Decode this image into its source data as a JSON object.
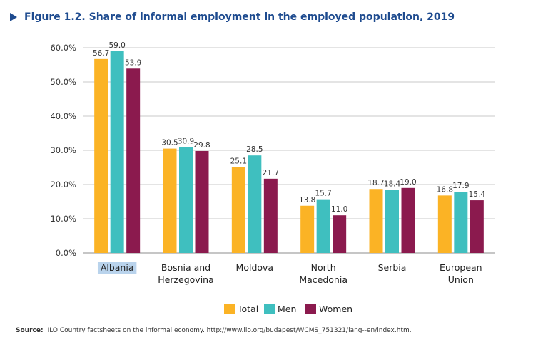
{
  "figure": {
    "title": "Figure 1.2. Share of informal employment in the employed population, 2019"
  },
  "source": {
    "label": "Source:",
    "text": "ILO Country factsheets on the informal economy. http://www.ilo.org/budapest/WCMS_751321/lang--en/index.htm."
  },
  "colors": {
    "title": "#1e4b8f",
    "total": "#fbb325",
    "men": "#3fbfbf",
    "women": "#8b1a4e",
    "highlight": "#b9d3ec",
    "grid": "#c9c9c9"
  },
  "chart_data": {
    "type": "bar",
    "title": "Figure 1.2. Share of informal employment in the employed population, 2019",
    "xlabel": "",
    "ylabel": "",
    "ylim": [
      0,
      60
    ],
    "yticks": [
      "0.0%",
      "10.0%",
      "20.0%",
      "30.0%",
      "40.0%",
      "50.0%",
      "60.0%"
    ],
    "grid": true,
    "legend": "bottom",
    "categories": [
      [
        "Albania"
      ],
      [
        "Bosnia and",
        "Herzegovina"
      ],
      [
        "Moldova"
      ],
      [
        "North",
        "Macedonia"
      ],
      [
        "Serbia"
      ],
      [
        "European",
        "Union"
      ]
    ],
    "highlighted_category": "Albania",
    "series": [
      {
        "name": "Total",
        "color": "#fbb325",
        "values": [
          56.7,
          30.5,
          25.1,
          13.8,
          18.7,
          16.8
        ],
        "labels": [
          "56.7",
          "30.5",
          "25.1",
          "13.8",
          "18.7",
          "16.8"
        ]
      },
      {
        "name": "Men",
        "color": "#3fbfbf",
        "values": [
          59.0,
          30.9,
          28.5,
          15.7,
          18.4,
          17.9
        ],
        "labels": [
          "59.0",
          "30.9",
          "28.5",
          "15.7",
          "18.4",
          "17.9"
        ]
      },
      {
        "name": "Women",
        "color": "#8b1a4e",
        "values": [
          53.9,
          29.8,
          21.7,
          11.0,
          19.0,
          15.4
        ],
        "labels": [
          "53.9",
          "29.8",
          "21.7",
          "11.0",
          "19.0",
          "15.4"
        ]
      }
    ]
  }
}
